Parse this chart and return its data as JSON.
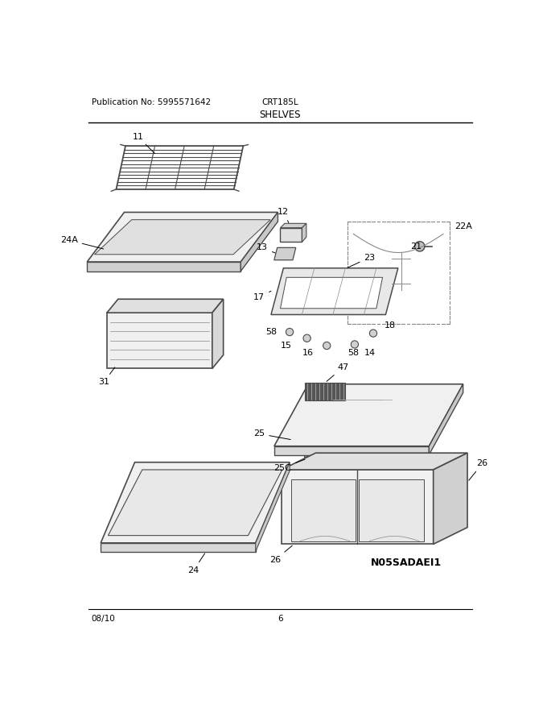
{
  "title_left": "Publication No: 5995571642",
  "title_center": "CRT185L",
  "subtitle": "SHELVES",
  "footer_left": "08/10",
  "footer_center": "6",
  "watermark": "N05SADAEI1",
  "bg_color": "#ffffff",
  "lc": "#4a4a4a",
  "lc_light": "#888888"
}
